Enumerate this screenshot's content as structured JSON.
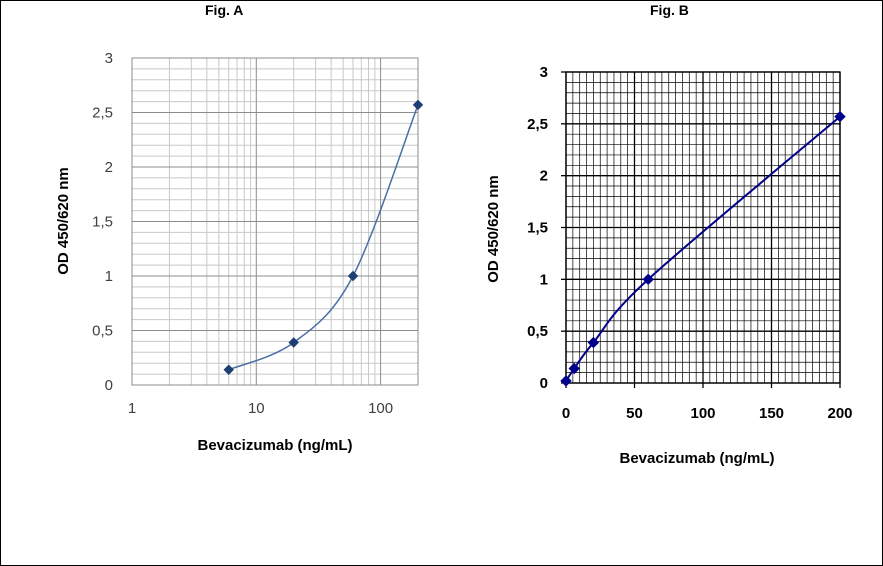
{
  "chart_data": [
    {
      "type": "line",
      "title": "Fig. A",
      "xlabel": "Bevacizumab (ng/mL)",
      "ylabel": "OD 450/620 nm",
      "xscale": "log",
      "xlim": [
        1,
        200
      ],
      "ylim": [
        0,
        3
      ],
      "xticks": [
        1,
        10,
        100
      ],
      "xtick_labels": [
        "1",
        "10",
        "100"
      ],
      "yticks": [
        0,
        0.5,
        1,
        1.5,
        2,
        2.5,
        3
      ],
      "ytick_labels": [
        "0",
        "0,5",
        "1",
        "1,5",
        "2",
        "2,5",
        "3"
      ],
      "grid": true,
      "smooth": true,
      "color": "#4a6fa5",
      "marker_color": "#1f3f73",
      "x": [
        6,
        20,
        60,
        200
      ],
      "y": [
        0.14,
        0.39,
        1.0,
        2.57
      ]
    },
    {
      "type": "line",
      "title": "Fig. B",
      "xlabel": "Bevacizumab (ng/mL)",
      "ylabel": "OD 450/620 nm",
      "xlim": [
        0,
        200
      ],
      "ylim": [
        0,
        3
      ],
      "xticks": [
        0,
        50,
        100,
        150,
        200
      ],
      "xtick_labels": [
        "0",
        "50",
        "100",
        "150",
        "200"
      ],
      "yticks": [
        0,
        0.5,
        1,
        1.5,
        2,
        2.5,
        3
      ],
      "ytick_labels": [
        "0",
        "0,5",
        "1",
        "1,5",
        "2",
        "2,5",
        "3"
      ],
      "grid": true,
      "smooth": true,
      "color": "#00008b",
      "marker_color": "#00008b",
      "x": [
        0,
        6,
        20,
        60,
        200
      ],
      "y": [
        0.02,
        0.14,
        0.39,
        1.0,
        2.57
      ]
    }
  ]
}
